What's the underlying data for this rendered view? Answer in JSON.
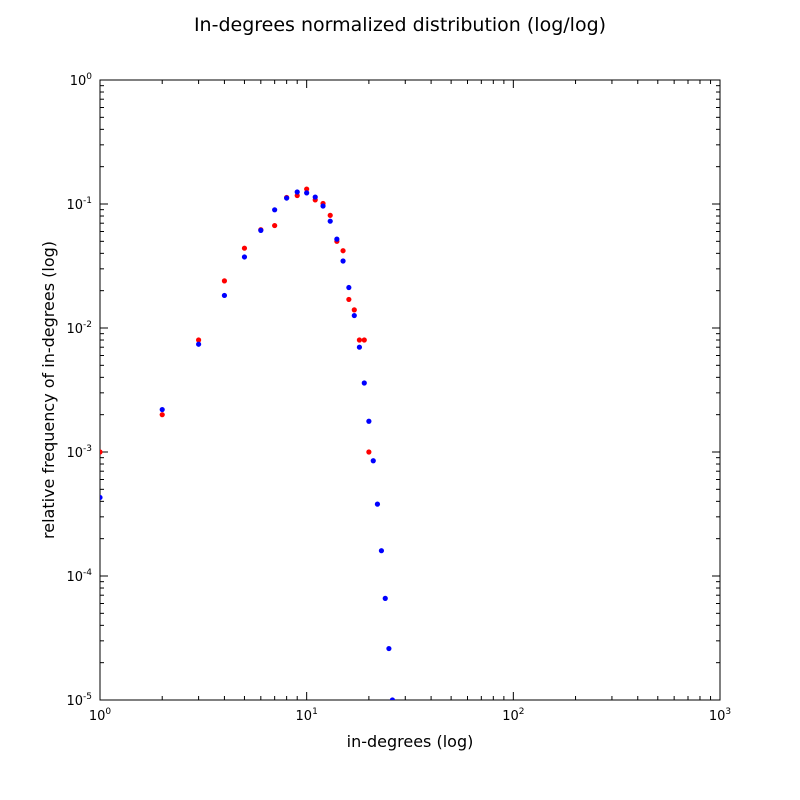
{
  "chart_data": {
    "type": "scatter",
    "title": "In-degrees normalized distribution (log/log)",
    "xlabel": "in-degrees (log)",
    "ylabel": "relative frequency of in-degrees (log)",
    "xscale": "log",
    "yscale": "log",
    "xlim": [
      1,
      1000
    ],
    "ylim": [
      1e-05,
      1
    ],
    "grid": false,
    "x_ticks": [
      {
        "base": "10",
        "exp": "0",
        "value": 1
      },
      {
        "base": "10",
        "exp": "1",
        "value": 10
      },
      {
        "base": "10",
        "exp": "2",
        "value": 100
      },
      {
        "base": "10",
        "exp": "3",
        "value": 1000
      }
    ],
    "y_ticks": [
      {
        "base": "10",
        "exp": "-5",
        "value": 1e-05
      },
      {
        "base": "10",
        "exp": "-4",
        "value": 0.0001
      },
      {
        "base": "10",
        "exp": "-3",
        "value": 0.001
      },
      {
        "base": "10",
        "exp": "-2",
        "value": 0.01
      },
      {
        "base": "10",
        "exp": "-1",
        "value": 0.1
      },
      {
        "base": "10",
        "exp": "0",
        "value": 1
      }
    ],
    "series": [
      {
        "color": "#ff0000",
        "points": [
          [
            1,
            0.001
          ],
          [
            2,
            0.002
          ],
          [
            3,
            0.008
          ],
          [
            4,
            0.024
          ],
          [
            5,
            0.044
          ],
          [
            6,
            0.062
          ],
          [
            7,
            0.067
          ],
          [
            8,
            0.113
          ],
          [
            9,
            0.117
          ],
          [
            10,
            0.132
          ],
          [
            11,
            0.108
          ],
          [
            12,
            0.101
          ],
          [
            13,
            0.081
          ],
          [
            14,
            0.05
          ],
          [
            15,
            0.042
          ],
          [
            16,
            0.017
          ],
          [
            17,
            0.014
          ],
          [
            18,
            0.008
          ],
          [
            19,
            0.008
          ],
          [
            20,
            0.001
          ]
        ]
      },
      {
        "color": "#0000ff",
        "points": [
          [
            1,
            0.00043
          ],
          [
            2,
            0.0022
          ],
          [
            3,
            0.0074
          ],
          [
            4,
            0.0183
          ],
          [
            5,
            0.0374
          ],
          [
            6,
            0.0613
          ],
          [
            7,
            0.0898
          ],
          [
            8,
            0.1116
          ],
          [
            9,
            0.125
          ],
          [
            10,
            0.1229
          ],
          [
            11,
            0.1138
          ],
          [
            12,
            0.0963
          ],
          [
            13,
            0.0727
          ],
          [
            14,
            0.0521
          ],
          [
            15,
            0.0347
          ],
          [
            16,
            0.0212
          ],
          [
            17,
            0.0126
          ],
          [
            18,
            0.007
          ],
          [
            19,
            0.0036
          ],
          [
            20,
            0.00177
          ],
          [
            21,
            0.00085
          ],
          [
            22,
            0.00038
          ],
          [
            23,
            0.00016
          ],
          [
            24,
            6.6e-05
          ],
          [
            25,
            2.6e-05
          ],
          [
            26,
            1e-05
          ]
        ]
      }
    ]
  }
}
